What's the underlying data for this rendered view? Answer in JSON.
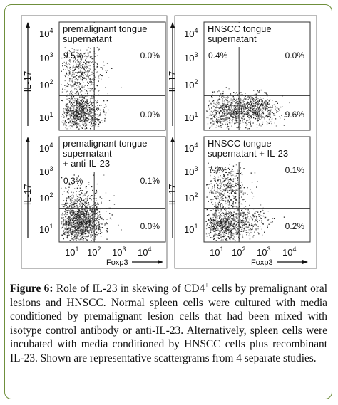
{
  "border_color": "#6f8f3c",
  "figure": {
    "panels": [
      {
        "id": "a",
        "label_lines": [
          "premalignant tongue",
          "supernatant"
        ],
        "quadrants": {
          "ul": "9.5%",
          "ur": "0.0%",
          "ll": "",
          "lr": "0.0%"
        },
        "population": "ul",
        "show_y_axis": true,
        "show_x_axis": false
      },
      {
        "id": "b",
        "label_lines": [
          "HNSCC tongue",
          "supernatant"
        ],
        "quadrants": {
          "ul": "0.4%",
          "ur": "0.0%",
          "ll": "",
          "lr": "9.6%"
        },
        "population": "lr",
        "show_y_axis": true,
        "show_x_axis": false
      },
      {
        "id": "c",
        "label_lines": [
          "premalignant tongue",
          "supernatant",
          "+ anti-IL-23"
        ],
        "quadrants": {
          "ul": "0.3%",
          "ur": "0.1%",
          "ll": "",
          "lr": "0.0%"
        },
        "population": "ll",
        "show_y_axis": true,
        "show_x_axis": true
      },
      {
        "id": "d",
        "label_lines": [
          "HNSCC tongue",
          "supernatant + IL-23"
        ],
        "quadrants": {
          "ul": "7.7%",
          "ur": "0.1%",
          "ll": "",
          "lr": "0.2%"
        },
        "population": "ul_lr",
        "show_y_axis": true,
        "show_x_axis": true
      }
    ],
    "y_ticks": [
      {
        "base": "10",
        "exp": "1"
      },
      {
        "base": "10",
        "exp": "2"
      },
      {
        "base": "10",
        "exp": "3"
      },
      {
        "base": "10",
        "exp": "4"
      }
    ],
    "x_ticks": [
      {
        "base": "10",
        "exp": "1"
      },
      {
        "base": "10",
        "exp": "2"
      },
      {
        "base": "10",
        "exp": "3"
      },
      {
        "base": "10",
        "exp": "4"
      }
    ],
    "y_label": "IL-17",
    "x_label": "Foxp3"
  },
  "chart_data": {
    "type": "scatter",
    "xlabel": "Foxp3",
    "ylabel": "IL-17",
    "x_scale": "log",
    "y_scale": "log",
    "xlim": [
      1,
      10000
    ],
    "ylim": [
      1,
      10000
    ],
    "panels": [
      {
        "title": "premalignant tongue supernatant",
        "quadrant_percent": {
          "upper_left": 9.5,
          "upper_right": 0.0,
          "lower_right": 0.0
        }
      },
      {
        "title": "HNSCC tongue supernatant",
        "quadrant_percent": {
          "upper_left": 0.4,
          "upper_right": 0.0,
          "lower_right": 9.6
        }
      },
      {
        "title": "premalignant tongue supernatant + anti-IL-23",
        "quadrant_percent": {
          "upper_left": 0.3,
          "upper_right": 0.1,
          "lower_right": 0.0
        }
      },
      {
        "title": "HNSCC tongue supernatant + IL-23",
        "quadrant_percent": {
          "upper_left": 7.7,
          "upper_right": 0.1,
          "lower_right": 0.2
        }
      }
    ]
  },
  "caption": {
    "label": "Figure 6:",
    "text_before_sup": " Role of IL-23 in skewing of CD4",
    "sup": "+",
    "text_after_sup": " cells by premalignant oral lesions and HNSCC. Normal spleen cells were cultured with media conditioned by premalignant lesion cells that had been mixed with isotype control antibody or anti-IL-23. Alternatively, spleen cells were incubated with media conditioned by HNSCC cells plus recombinant IL-23. Shown are representative scattergrams from 4 separate studies."
  }
}
